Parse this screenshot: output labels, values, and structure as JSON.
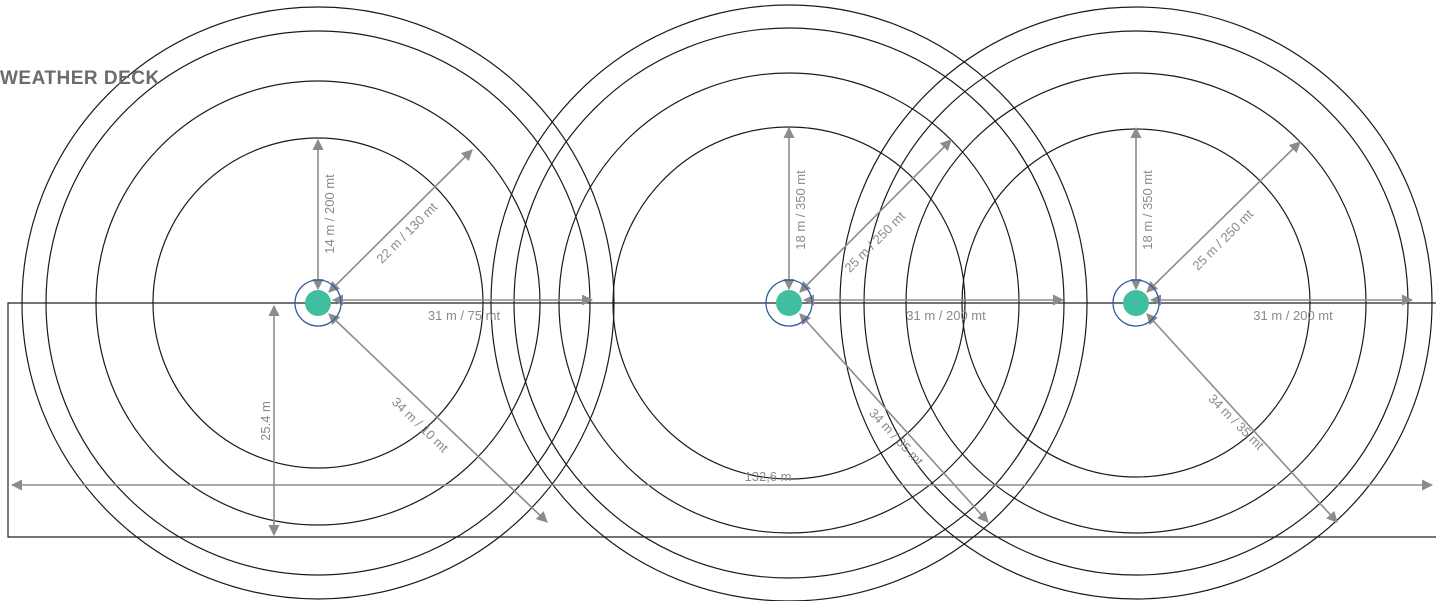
{
  "title": "WEATHER DECK",
  "colors": {
    "marker_fill": "#3fbf9f",
    "marker_ring": "#2f5d9e",
    "dimension_line": "#8c8c8c",
    "circle_stroke": "#1a1a1a"
  },
  "deck": {
    "length_label": "132,6 m",
    "width_label": "25.4 m"
  },
  "sources": [
    {
      "id": "source-1",
      "vertical_label": "14 m / 200 mt",
      "diagonal_up_label": "22 m / 130 mt",
      "horizontal_label": "31 m / 75 mt",
      "diagonal_down_label": "34 m / 10 mt"
    },
    {
      "id": "source-2",
      "vertical_label": "18 m / 350 mt",
      "diagonal_up_label": "25 m / 250 mt",
      "horizontal_label": "31 m / 200 mt",
      "diagonal_down_label": "34 m / 35 mt"
    },
    {
      "id": "source-3",
      "vertical_label": "18 m / 350 mt",
      "diagonal_up_label": "25 m / 250 mt",
      "horizontal_label": "31 m / 200 mt",
      "diagonal_down_label": "34 m / 35 mt"
    }
  ]
}
